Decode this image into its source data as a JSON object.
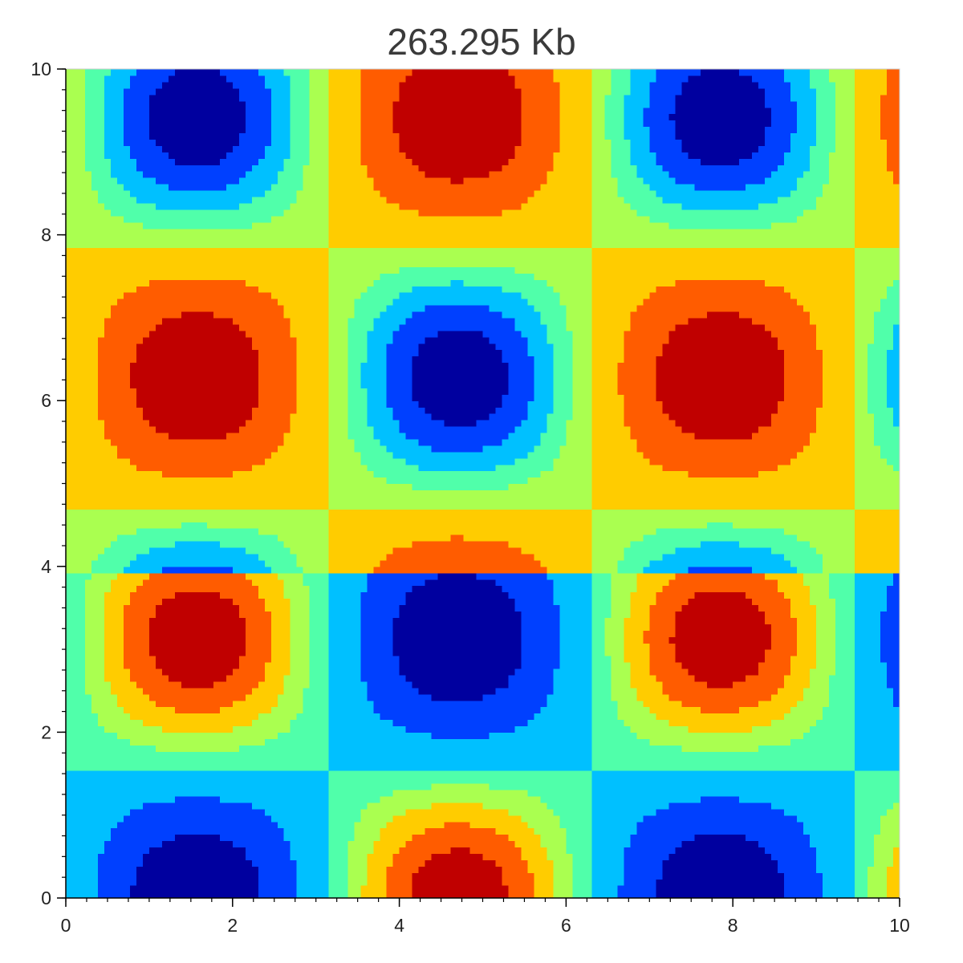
{
  "chart_data": {
    "type": "heatmap",
    "subtype": "filled-contour",
    "title": "263.295 Kb",
    "xlabel": "",
    "ylabel": "",
    "xlim": [
      0,
      10
    ],
    "ylim": [
      0,
      10
    ],
    "x_ticks": [
      "0",
      "2",
      "4",
      "6",
      "8",
      "10"
    ],
    "y_ticks": [
      "0",
      "2",
      "4",
      "6",
      "8",
      "10"
    ],
    "x_tick_values": [
      0,
      2,
      4,
      6,
      8,
      10
    ],
    "y_tick_values": [
      0,
      2,
      4,
      6,
      8,
      10
    ],
    "minor_tick_step": 0.25,
    "grid": false,
    "legend": "none",
    "colormap": "jet",
    "contour_levels": [
      -1,
      -0.75,
      -0.5,
      -0.25,
      0,
      0.25,
      0.5,
      0.75,
      1
    ],
    "level_colors": [
      "#00009f",
      "#0040ff",
      "#00c0ff",
      "#50ffaa",
      "#aaff50",
      "#ffcc00",
      "#ff5c00",
      "#c00000"
    ],
    "function": "z = sin(x) * cos(y)",
    "lower_band": {
      "y_from": 0,
      "y_to": 3.9,
      "value_offset": -0.25,
      "x_period_shift": 3.14159
    },
    "upper_band": {
      "y_from": 3.9,
      "y_to": 10,
      "value_offset": 0.25,
      "x_period_shift": 0
    }
  }
}
